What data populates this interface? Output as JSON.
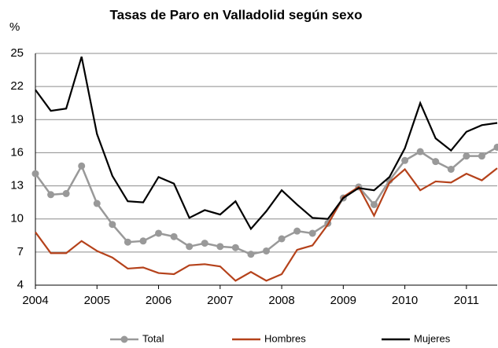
{
  "chart_data": {
    "type": "line",
    "title": "Tasas de Paro en Valladolid según sexo",
    "y_label": "%",
    "x": [
      2004,
      2004.25,
      2004.5,
      2004.75,
      2005,
      2005.25,
      2005.5,
      2005.75,
      2006,
      2006.25,
      2006.5,
      2006.75,
      2007,
      2007.25,
      2007.5,
      2007.75,
      2008,
      2008.25,
      2008.5,
      2008.75,
      2009,
      2009.25,
      2009.5,
      2009.75,
      2010,
      2010.25,
      2010.5,
      2010.75,
      2011,
      2011.25,
      2011.5
    ],
    "series": [
      {
        "name": "Total",
        "color": "#999999",
        "marker": true,
        "values": [
          14.1,
          12.2,
          12.3,
          14.8,
          11.4,
          9.5,
          7.9,
          8.0,
          8.7,
          8.4,
          7.5,
          7.8,
          7.5,
          7.4,
          6.8,
          7.1,
          8.2,
          8.9,
          8.7,
          9.6,
          11.9,
          12.9,
          11.3,
          13.5,
          15.3,
          16.1,
          15.2,
          14.5,
          15.7,
          15.7,
          16.5
        ]
      },
      {
        "name": "Hombres",
        "color": "#b5421b",
        "marker": false,
        "values": [
          8.8,
          6.9,
          6.9,
          8.0,
          7.1,
          6.5,
          5.5,
          5.6,
          5.1,
          5.0,
          5.8,
          5.9,
          5.7,
          4.4,
          5.2,
          4.4,
          5.0,
          7.2,
          7.6,
          9.5,
          12.0,
          12.9,
          10.3,
          13.3,
          14.5,
          12.6,
          13.4,
          13.3,
          14.1,
          13.5,
          14.6
        ]
      },
      {
        "name": "Mujeres",
        "color": "#000000",
        "marker": false,
        "values": [
          21.7,
          19.8,
          20.0,
          24.7,
          17.7,
          13.9,
          11.6,
          11.5,
          13.8,
          13.2,
          10.1,
          10.8,
          10.4,
          11.6,
          9.1,
          10.7,
          12.6,
          11.3,
          10.1,
          10.0,
          11.9,
          12.8,
          12.6,
          13.8,
          16.4,
          20.5,
          17.3,
          16.2,
          17.9,
          18.5,
          18.7
        ]
      }
    ],
    "xlim": [
      2004,
      2011.5
    ],
    "xticks": [
      2004,
      2005,
      2006,
      2007,
      2008,
      2009,
      2010,
      2011
    ],
    "ylim": [
      4,
      25
    ],
    "yticks": [
      4,
      7,
      10,
      13,
      16,
      19,
      22,
      25
    ],
    "grid": true,
    "legend": "bottom"
  }
}
